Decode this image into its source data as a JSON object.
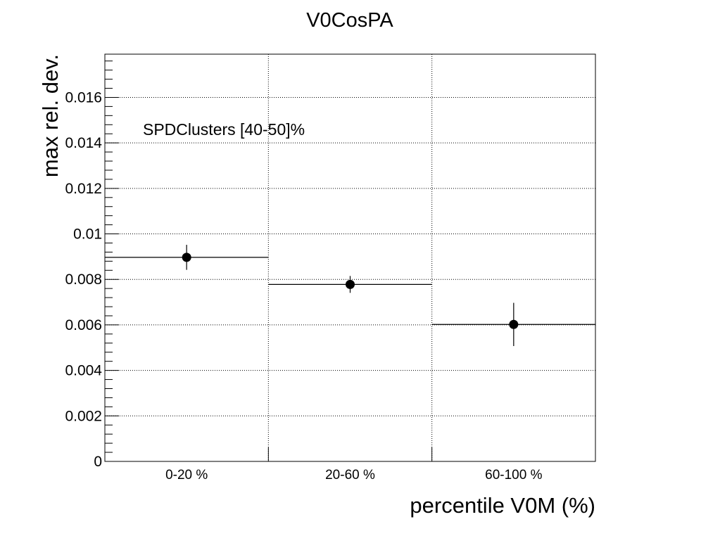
{
  "chart_data": {
    "type": "scatter",
    "title": "V0CosPA",
    "xlabel": "percentile V0M (%)",
    "ylabel": "max rel. dev.",
    "annotation": "SPDClusters [40-50]%",
    "categories": [
      "0-20 %",
      "20-60 %",
      "60-100 %"
    ],
    "ylim": [
      0,
      0.0179
    ],
    "yticks": [
      0,
      0.002,
      0.004,
      0.006,
      0.008,
      0.01,
      0.012,
      0.014,
      0.016
    ],
    "ytick_labels": [
      "0",
      "0.002",
      "0.004",
      "0.006",
      "0.008",
      "0.01",
      "0.012",
      "0.014",
      "0.016"
    ],
    "grid": true,
    "series": [
      {
        "values": [
          0.00897,
          0.00778,
          0.00602
        ],
        "errors": [
          0.00055,
          0.00037,
          0.00095
        ]
      }
    ]
  }
}
